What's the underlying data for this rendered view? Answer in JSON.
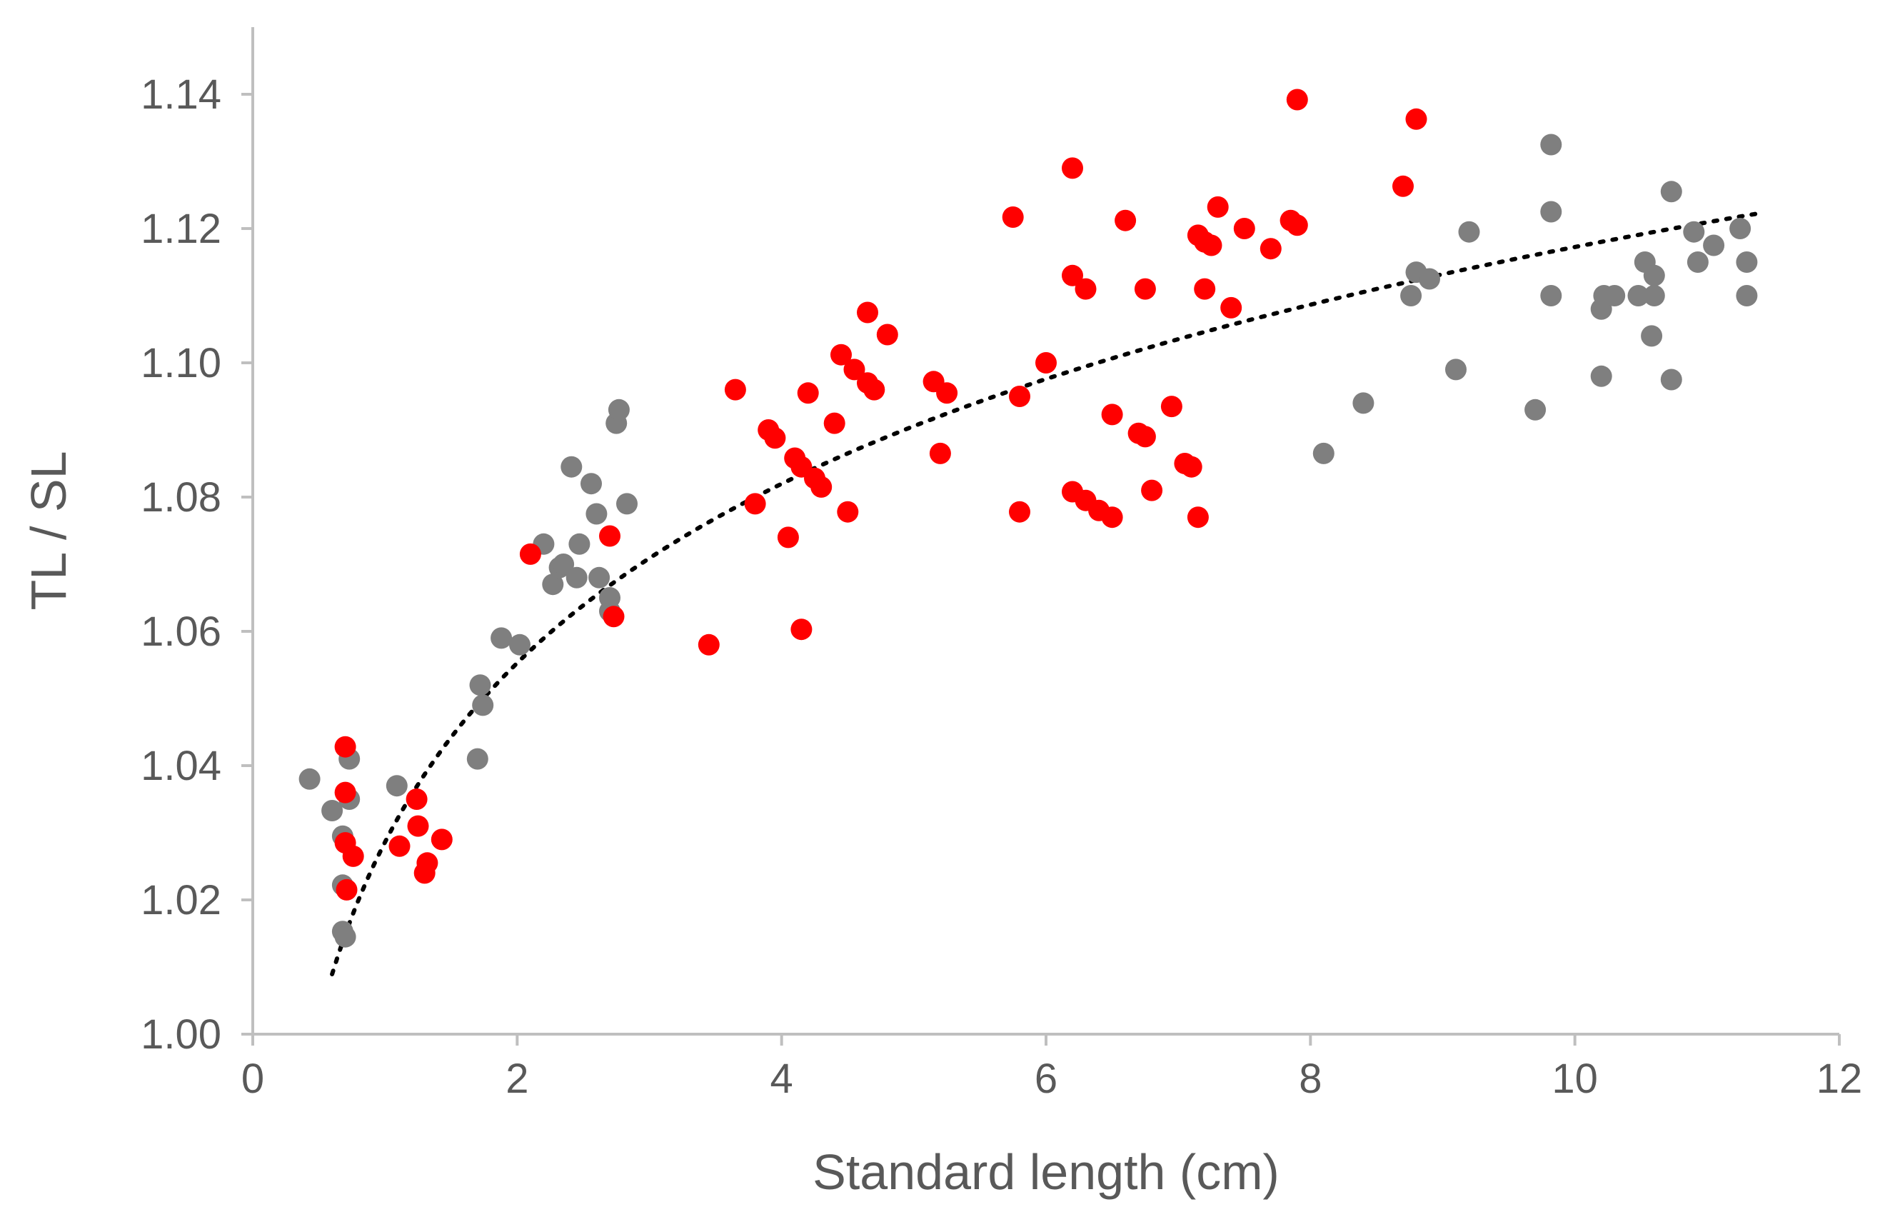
{
  "chart_data": {
    "type": "scatter",
    "title": "",
    "xlabel": "Standard length (cm)",
    "ylabel": "TL / SL",
    "xlim": [
      0,
      12
    ],
    "ylim": [
      1.0,
      1.15
    ],
    "x_ticks": [
      "0",
      "2",
      "4",
      "6",
      "8",
      "10",
      "12"
    ],
    "y_ticks": [
      "1.00",
      "1.02",
      "1.04",
      "1.06",
      "1.08",
      "1.10",
      "1.12",
      "1.14"
    ],
    "grid": false,
    "legend": "none",
    "trendline": {
      "type": "logarithmic",
      "a": 1.0286,
      "b": 0.0385,
      "x_range": [
        0.6,
        11.4
      ],
      "style": "dotted",
      "color": "#000000"
    },
    "series": [
      {
        "color": "#7f7f7f",
        "points": [
          [
            0.43,
            1.038
          ],
          [
            0.6,
            1.0333
          ],
          [
            0.68,
            1.0222
          ],
          [
            0.68,
            1.0295
          ],
          [
            0.68,
            1.0153
          ],
          [
            0.7,
            1.0145
          ],
          [
            0.73,
            1.035
          ],
          [
            0.73,
            1.041
          ],
          [
            1.09,
            1.037
          ],
          [
            1.7,
            1.041
          ],
          [
            1.72,
            1.052
          ],
          [
            1.74,
            1.049
          ],
          [
            1.88,
            1.059
          ],
          [
            2.02,
            1.058
          ],
          [
            2.2,
            1.073
          ],
          [
            2.27,
            1.067
          ],
          [
            2.32,
            1.0695
          ],
          [
            2.35,
            1.07
          ],
          [
            2.41,
            1.0845
          ],
          [
            2.45,
            1.068
          ],
          [
            2.47,
            1.073
          ],
          [
            2.56,
            1.082
          ],
          [
            2.6,
            1.0775
          ],
          [
            2.62,
            1.068
          ],
          [
            2.7,
            1.063
          ],
          [
            2.7,
            1.065
          ],
          [
            2.75,
            1.091
          ],
          [
            2.77,
            1.093
          ],
          [
            2.83,
            1.079
          ],
          [
            8.1,
            1.0865
          ],
          [
            8.4,
            1.094
          ],
          [
            8.76,
            1.11
          ],
          [
            8.8,
            1.1135
          ],
          [
            8.9,
            1.1125
          ],
          [
            9.1,
            1.099
          ],
          [
            9.2,
            1.1195
          ],
          [
            9.7,
            1.093
          ],
          [
            9.82,
            1.1325
          ],
          [
            9.82,
            1.1225
          ],
          [
            9.82,
            1.11
          ],
          [
            10.2,
            1.098
          ],
          [
            10.2,
            1.108
          ],
          [
            10.22,
            1.11
          ],
          [
            10.3,
            1.11
          ],
          [
            10.48,
            1.11
          ],
          [
            10.53,
            1.115
          ],
          [
            10.58,
            1.104
          ],
          [
            10.6,
            1.11
          ],
          [
            10.6,
            1.113
          ],
          [
            10.73,
            1.0975
          ],
          [
            10.73,
            1.1255
          ],
          [
            10.9,
            1.1195
          ],
          [
            10.93,
            1.115
          ],
          [
            11.05,
            1.1175
          ],
          [
            11.25,
            1.12
          ],
          [
            11.3,
            1.11
          ],
          [
            11.3,
            1.115
          ]
        ]
      },
      {
        "color": "#ff0000",
        "points": [
          [
            0.7,
            1.0428
          ],
          [
            0.7,
            1.036
          ],
          [
            0.7,
            1.0285
          ],
          [
            0.71,
            1.0215
          ],
          [
            0.76,
            1.0265
          ],
          [
            1.11,
            1.028
          ],
          [
            1.24,
            1.035
          ],
          [
            1.25,
            1.031
          ],
          [
            1.3,
            1.024
          ],
          [
            1.32,
            1.0255
          ],
          [
            1.43,
            1.029
          ],
          [
            2.1,
            1.0715
          ],
          [
            2.7,
            1.0742
          ],
          [
            2.73,
            1.0622
          ],
          [
            3.45,
            1.058
          ],
          [
            3.65,
            1.096
          ],
          [
            3.8,
            1.079
          ],
          [
            3.9,
            1.09
          ],
          [
            3.95,
            1.0888
          ],
          [
            4.05,
            1.074
          ],
          [
            4.1,
            1.0858
          ],
          [
            4.15,
            1.0845
          ],
          [
            4.15,
            1.0603
          ],
          [
            4.2,
            1.0955
          ],
          [
            4.25,
            1.0828
          ],
          [
            4.3,
            1.0815
          ],
          [
            4.4,
            1.091
          ],
          [
            4.45,
            1.1012
          ],
          [
            4.5,
            1.0778
          ],
          [
            4.55,
            1.099
          ],
          [
            4.65,
            1.1075
          ],
          [
            4.65,
            1.097
          ],
          [
            4.7,
            1.096
          ],
          [
            4.8,
            1.1042
          ],
          [
            5.15,
            1.0972
          ],
          [
            5.2,
            1.0865
          ],
          [
            5.25,
            1.0955
          ],
          [
            5.75,
            1.1217
          ],
          [
            5.8,
            1.095
          ],
          [
            5.8,
            1.0778
          ],
          [
            6.0,
            1.1
          ],
          [
            6.2,
            1.129
          ],
          [
            6.2,
            1.113
          ],
          [
            6.2,
            1.0808
          ],
          [
            6.3,
            1.111
          ],
          [
            6.3,
            1.0795
          ],
          [
            6.4,
            1.078
          ],
          [
            6.5,
            1.0923
          ],
          [
            6.5,
            1.077
          ],
          [
            6.6,
            1.1212
          ],
          [
            6.7,
            1.0895
          ],
          [
            6.75,
            1.111
          ],
          [
            6.75,
            1.089
          ],
          [
            6.8,
            1.081
          ],
          [
            6.95,
            1.0935
          ],
          [
            7.05,
            1.085
          ],
          [
            7.1,
            1.0845
          ],
          [
            7.15,
            1.077
          ],
          [
            7.15,
            1.119
          ],
          [
            7.2,
            1.118
          ],
          [
            7.2,
            1.111
          ],
          [
            7.25,
            1.1175
          ],
          [
            7.3,
            1.1232
          ],
          [
            7.4,
            1.1082
          ],
          [
            7.5,
            1.12
          ],
          [
            7.7,
            1.117
          ],
          [
            7.85,
            1.1212
          ],
          [
            7.9,
            1.1392
          ],
          [
            7.9,
            1.1205
          ],
          [
            8.7,
            1.1263
          ],
          [
            8.8,
            1.1363
          ]
        ]
      }
    ]
  }
}
